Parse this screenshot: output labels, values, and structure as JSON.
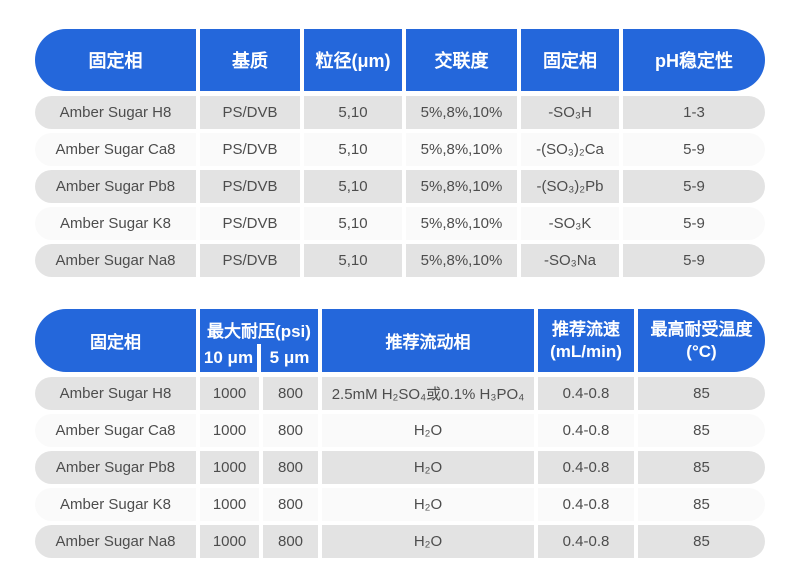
{
  "colors": {
    "header_blue": "#2467db",
    "row_gray": "#e3e3e3",
    "row_light": "#fafafa",
    "body_text": "#4d4d4d",
    "header_text": "#ffffff"
  },
  "table1": {
    "headers": [
      "固定相",
      "基质",
      "粒径(μm)",
      "交联度",
      "固定相",
      "pH稳定性"
    ],
    "rows": [
      [
        "Amber Sugar H8",
        "PS/DVB",
        "5,10",
        "5%,8%,10%",
        "-SO₃H",
        "1-3"
      ],
      [
        "Amber Sugar Ca8",
        "PS/DVB",
        "5,10",
        "5%,8%,10%",
        "-(SO₃)₂Ca",
        "5-9"
      ],
      [
        "Amber Sugar Pb8",
        "PS/DVB",
        "5,10",
        "5%,8%,10%",
        "-(SO₃)₂Pb",
        "5-9"
      ],
      [
        "Amber Sugar K8",
        "PS/DVB",
        "5,10",
        "5%,8%,10%",
        "-SO₃K",
        "5-9"
      ],
      [
        "Amber Sugar Na8",
        "PS/DVB",
        "5,10",
        "5%,8%,10%",
        "-SO₃Na",
        "5-9"
      ]
    ]
  },
  "table2": {
    "header": {
      "stationary_phase": "固定相",
      "max_pressure_title": "最大耐压(psi)",
      "sub_10um": "10 μm",
      "sub_5um": "5 μm",
      "mobile_phase": "推荐流动相",
      "flow_rate": "推荐流速\n(mL/min)",
      "max_temp": "最高耐受温度\n(°C)"
    },
    "rows": [
      [
        "Amber Sugar H8",
        "1000",
        "800",
        "2.5mM H₂SO₄或0.1% H₃PO₄",
        "0.4-0.8",
        "85"
      ],
      [
        "Amber Sugar Ca8",
        "1000",
        "800",
        "H₂O",
        "0.4-0.8",
        "85"
      ],
      [
        "Amber Sugar Pb8",
        "1000",
        "800",
        "H₂O",
        "0.4-0.8",
        "85"
      ],
      [
        "Amber Sugar K8",
        "1000",
        "800",
        "H₂O",
        "0.4-0.8",
        "85"
      ],
      [
        "Amber Sugar Na8",
        "1000",
        "800",
        "H₂O",
        "0.4-0.8",
        "85"
      ]
    ]
  }
}
